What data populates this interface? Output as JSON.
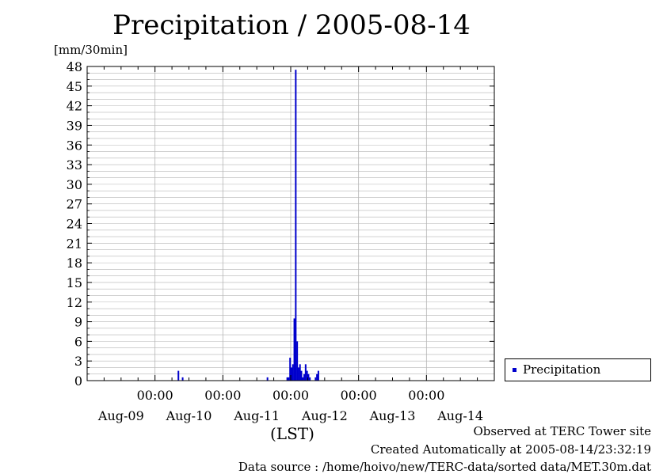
{
  "chart_data": {
    "type": "bar",
    "title": "Precipitation / 2005-08-14",
    "ylabel": "[mm/30min]",
    "xlabel": "(LST)",
    "ylim": [
      0,
      48
    ],
    "y_ticks": [
      0,
      3,
      6,
      9,
      12,
      15,
      18,
      21,
      24,
      27,
      30,
      33,
      36,
      39,
      42,
      45,
      48
    ],
    "xlim_hours": [
      -48,
      96
    ],
    "x_tick_times": [
      "00:00",
      "00:00",
      "00:00",
      "00:00",
      "00:00"
    ],
    "x_tick_dates": [
      "Aug-09",
      "Aug-10",
      "Aug-11",
      "Aug-12",
      "Aug-13",
      "Aug-14"
    ],
    "grid": true,
    "legend_position": "right-bottom",
    "series": [
      {
        "name": "Precipitation",
        "color": "#0000cc",
        "points": [
          {
            "t": "08-10 08:30",
            "v": 1.5
          },
          {
            "t": "08-10 10:00",
            "v": 0.5
          },
          {
            "t": "08-11 16:00",
            "v": 0.5
          },
          {
            "t": "08-11 23:00",
            "v": 0.5
          },
          {
            "t": "08-11 23:30",
            "v": 0.5
          },
          {
            "t": "08-12 00:00",
            "v": 3.5
          },
          {
            "t": "08-12 00:30",
            "v": 2.0
          },
          {
            "t": "08-12 01:00",
            "v": 2.5
          },
          {
            "t": "08-12 01:30",
            "v": 9.5
          },
          {
            "t": "08-12 02:00",
            "v": 47.5
          },
          {
            "t": "08-12 02:30",
            "v": 6.0
          },
          {
            "t": "08-12 03:00",
            "v": 2.0
          },
          {
            "t": "08-12 03:30",
            "v": 2.5
          },
          {
            "t": "08-12 04:00",
            "v": 1.5
          },
          {
            "t": "08-12 04:30",
            "v": 0.5
          },
          {
            "t": "08-12 05:00",
            "v": 1.0
          },
          {
            "t": "08-12 05:30",
            "v": 2.5
          },
          {
            "t": "08-12 06:00",
            "v": 1.5
          },
          {
            "t": "08-12 06:30",
            "v": 1.0
          },
          {
            "t": "08-12 07:00",
            "v": 0.5
          },
          {
            "t": "08-12 09:00",
            "v": 0.5
          },
          {
            "t": "08-12 09:30",
            "v": 1.0
          },
          {
            "t": "08-12 10:00",
            "v": 1.5
          }
        ]
      }
    ]
  },
  "footer": {
    "observed": "Observed at TERC Tower site",
    "created": "Created Automatically at 2005-08-14/23:32:19",
    "source": "Data source : /home/hoivo/new/TERC-data/sorted  data/MET.30m.dat"
  }
}
